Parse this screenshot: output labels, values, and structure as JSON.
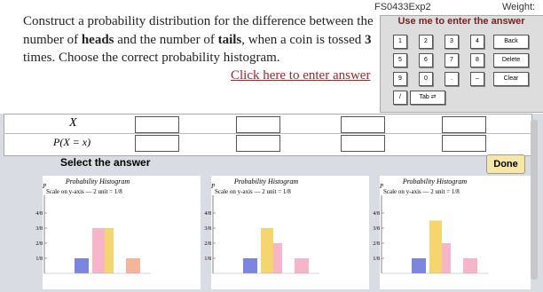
{
  "header": {
    "code": "FS0433Exp2",
    "weight": "Weight:"
  },
  "question": {
    "line1": "Construct a probability distribution for the difference between the",
    "line2": [
      "number of ",
      "heads",
      " and the number of ",
      "tails",
      ", when a coin is tossed ",
      "3"
    ],
    "line3": "times. Choose the correct probability histogram.",
    "link": "Click here to enter answer"
  },
  "keypad": {
    "title": "Use me to enter the answer",
    "rows": [
      [
        "1",
        "2",
        "3",
        "4",
        "Back"
      ],
      [
        "5",
        "6",
        "7",
        "8",
        "Delete"
      ],
      [
        "9",
        "0",
        ".",
        "–",
        "Clear"
      ],
      [
        "/",
        "Tab ⇄"
      ]
    ]
  },
  "table": {
    "rows": [
      {
        "label": "X"
      },
      {
        "label": "P(X = x)"
      }
    ]
  },
  "select": {
    "label": "Select the answer",
    "button": "Done"
  },
  "histograms": [
    {
      "title": "Probability Histogram",
      "scale": "Scale on y-axis — 2 unit = 1/8",
      "ylabel": "P",
      "ylim": [
        0,
        0.5
      ],
      "yticks": [
        {
          "value": 0.125,
          "label": "1/8"
        },
        {
          "value": 0.25,
          "label": "2/8"
        },
        {
          "value": 0.375,
          "label": "3/8"
        },
        {
          "value": 0.5,
          "label": "4/8"
        }
      ],
      "values": [
        0.125,
        0.375,
        0.375,
        0.125
      ],
      "colors": [
        "#7b86e0",
        "#f4b6c8",
        "#f5d66e",
        "#f5b59a"
      ]
    },
    {
      "title": "Probability Histogram",
      "scale": "Scale on y-axis — 2 unit = 1/8",
      "ylabel": "P",
      "ylim": [
        0,
        0.5
      ],
      "yticks": [
        {
          "value": 0.125,
          "label": "1/8"
        },
        {
          "value": 0.25,
          "label": "2/8"
        },
        {
          "value": 0.375,
          "label": "3/8"
        },
        {
          "value": 0.5,
          "label": "4/8"
        }
      ],
      "values": [
        0.125,
        0.375,
        0.25,
        0.125
      ],
      "colors": [
        "#7b86e0",
        "#f5d66e",
        "#f4b6c8",
        "#f4b6c8"
      ]
    },
    {
      "title": "Probability Histogram",
      "scale": "Scale on y-axis — 2 unit = 1/8",
      "ylabel": "P",
      "ylim": [
        0,
        0.5
      ],
      "yticks": [
        {
          "value": 0.125,
          "label": "1/8"
        },
        {
          "value": 0.25,
          "label": "2/8"
        },
        {
          "value": 0.375,
          "label": "3/8"
        },
        {
          "value": 0.5,
          "label": "4/8"
        }
      ],
      "values": [
        0.125,
        0.4375,
        0.25,
        0.125
      ],
      "colors": [
        "#7b86e0",
        "#f5d66e",
        "#f4b6c8",
        "#f4b6c8"
      ]
    }
  ]
}
